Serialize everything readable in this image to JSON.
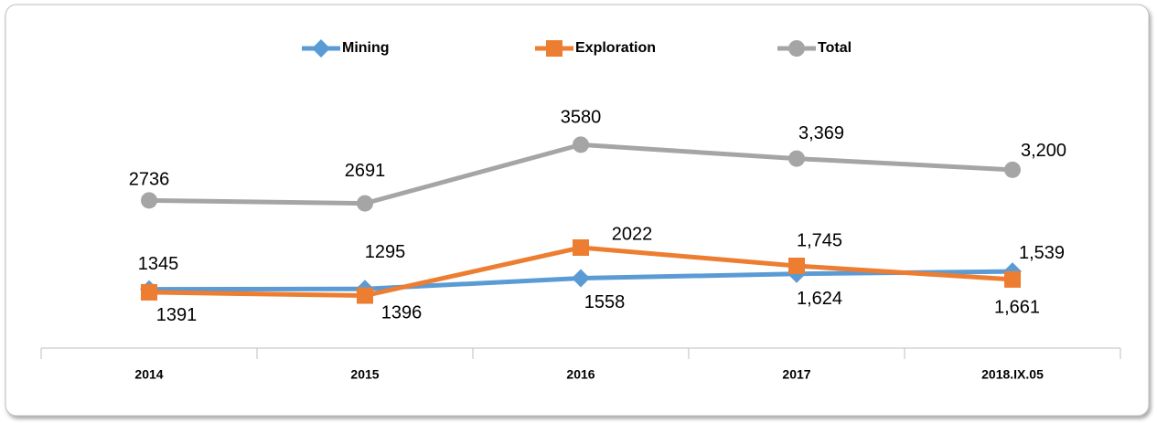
{
  "chart_data": {
    "type": "line",
    "categories": [
      "2014",
      "2015",
      "2016",
      "2017",
      "2018.IX.05"
    ],
    "series": [
      {
        "name": "Mining",
        "color": "#5b9bd5",
        "marker": "diamond",
        "values": [
          1391,
          1396,
          1558,
          1624,
          1661
        ],
        "value_labels": [
          "1391",
          "1396",
          "1558",
          "1,624",
          "1,661"
        ]
      },
      {
        "name": "Exploration",
        "color": "#ed7d31",
        "marker": "square",
        "values": [
          1345,
          1295,
          2022,
          1745,
          1539
        ],
        "value_labels": [
          "1345",
          "1295",
          "2022",
          "1,745",
          "1,539"
        ]
      },
      {
        "name": "Total",
        "color": "#a5a5a5",
        "marker": "circle",
        "values": [
          2736,
          2691,
          3580,
          3369,
          3200
        ],
        "value_labels": [
          "2736",
          "2691",
          "3580",
          "3,369",
          "3,200"
        ]
      }
    ],
    "ylim": [
      500,
      4000
    ],
    "legend": "top"
  }
}
